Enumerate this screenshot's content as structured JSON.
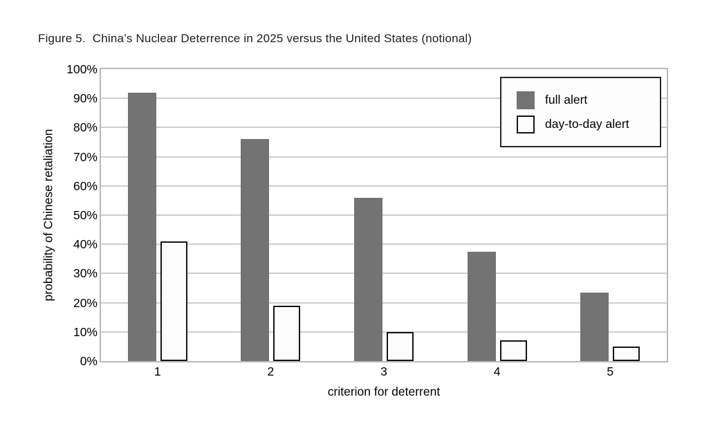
{
  "figure": {
    "title": "Figure 5.  China’s Nuclear Deterrence in 2025 versus the United States (notional)"
  },
  "chart_data": {
    "type": "bar",
    "title": "Figure 5.  China’s Nuclear Deterrence in 2025 versus the United States (notional)",
    "categories": [
      "1",
      "2",
      "3",
      "4",
      "5"
    ],
    "series": [
      {
        "name": "full alert",
        "values": [
          92,
          76,
          56,
          37.5,
          23.5
        ],
        "fill": "#737373",
        "border": "#737373"
      },
      {
        "name": "day-to-day alert",
        "values": [
          41,
          19,
          10,
          7,
          5
        ],
        "fill": "#fcfcfc",
        "border": "#141414"
      }
    ],
    "xlabel": "criterion for deterrent",
    "ylabel": "probability of Chinese retaliation",
    "ylim": [
      0,
      100
    ],
    "ytick_step": 10,
    "ytick_suffix": "%",
    "grid": "horizontal",
    "legend_position": "top-right"
  },
  "colors": {
    "background": "#ffffff",
    "plot_border": "#b9b9b9",
    "gridline": "#cdcdcd",
    "legend_border": "#262626",
    "text": "#000000"
  }
}
